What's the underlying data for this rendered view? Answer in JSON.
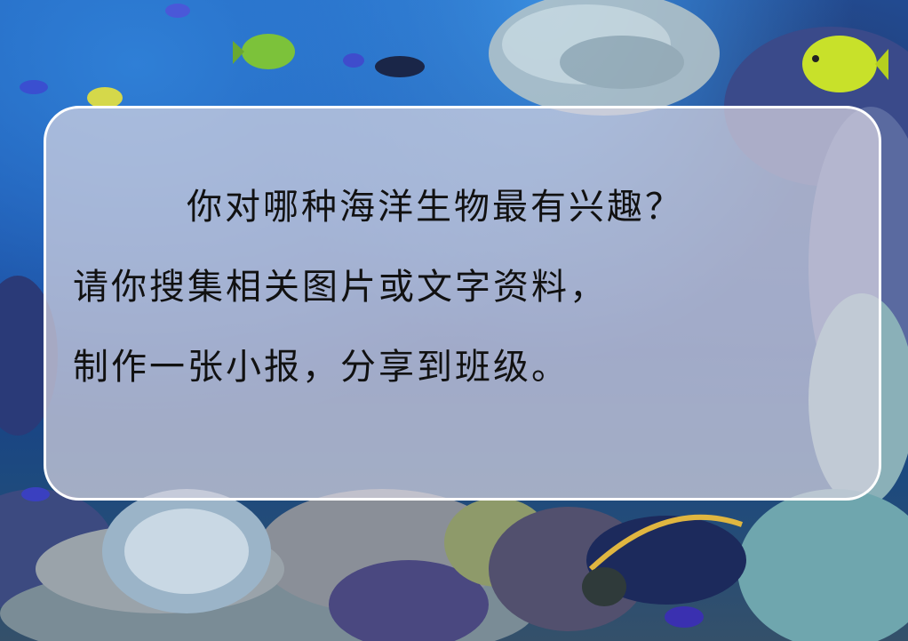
{
  "text_panel": {
    "lines": [
      "你对哪种海洋生物最有兴趣？",
      "请你搜集相关图片或文字资料，",
      "制作一张小报，分享到班级。"
    ]
  },
  "scene": {
    "subject": "coral-reef-aquarium",
    "colors": {
      "water": "#1a4da6",
      "coral": "#4a4f8a",
      "yellow_fish": "#c8e12a",
      "blue_fish": "#2a3f9a"
    }
  }
}
